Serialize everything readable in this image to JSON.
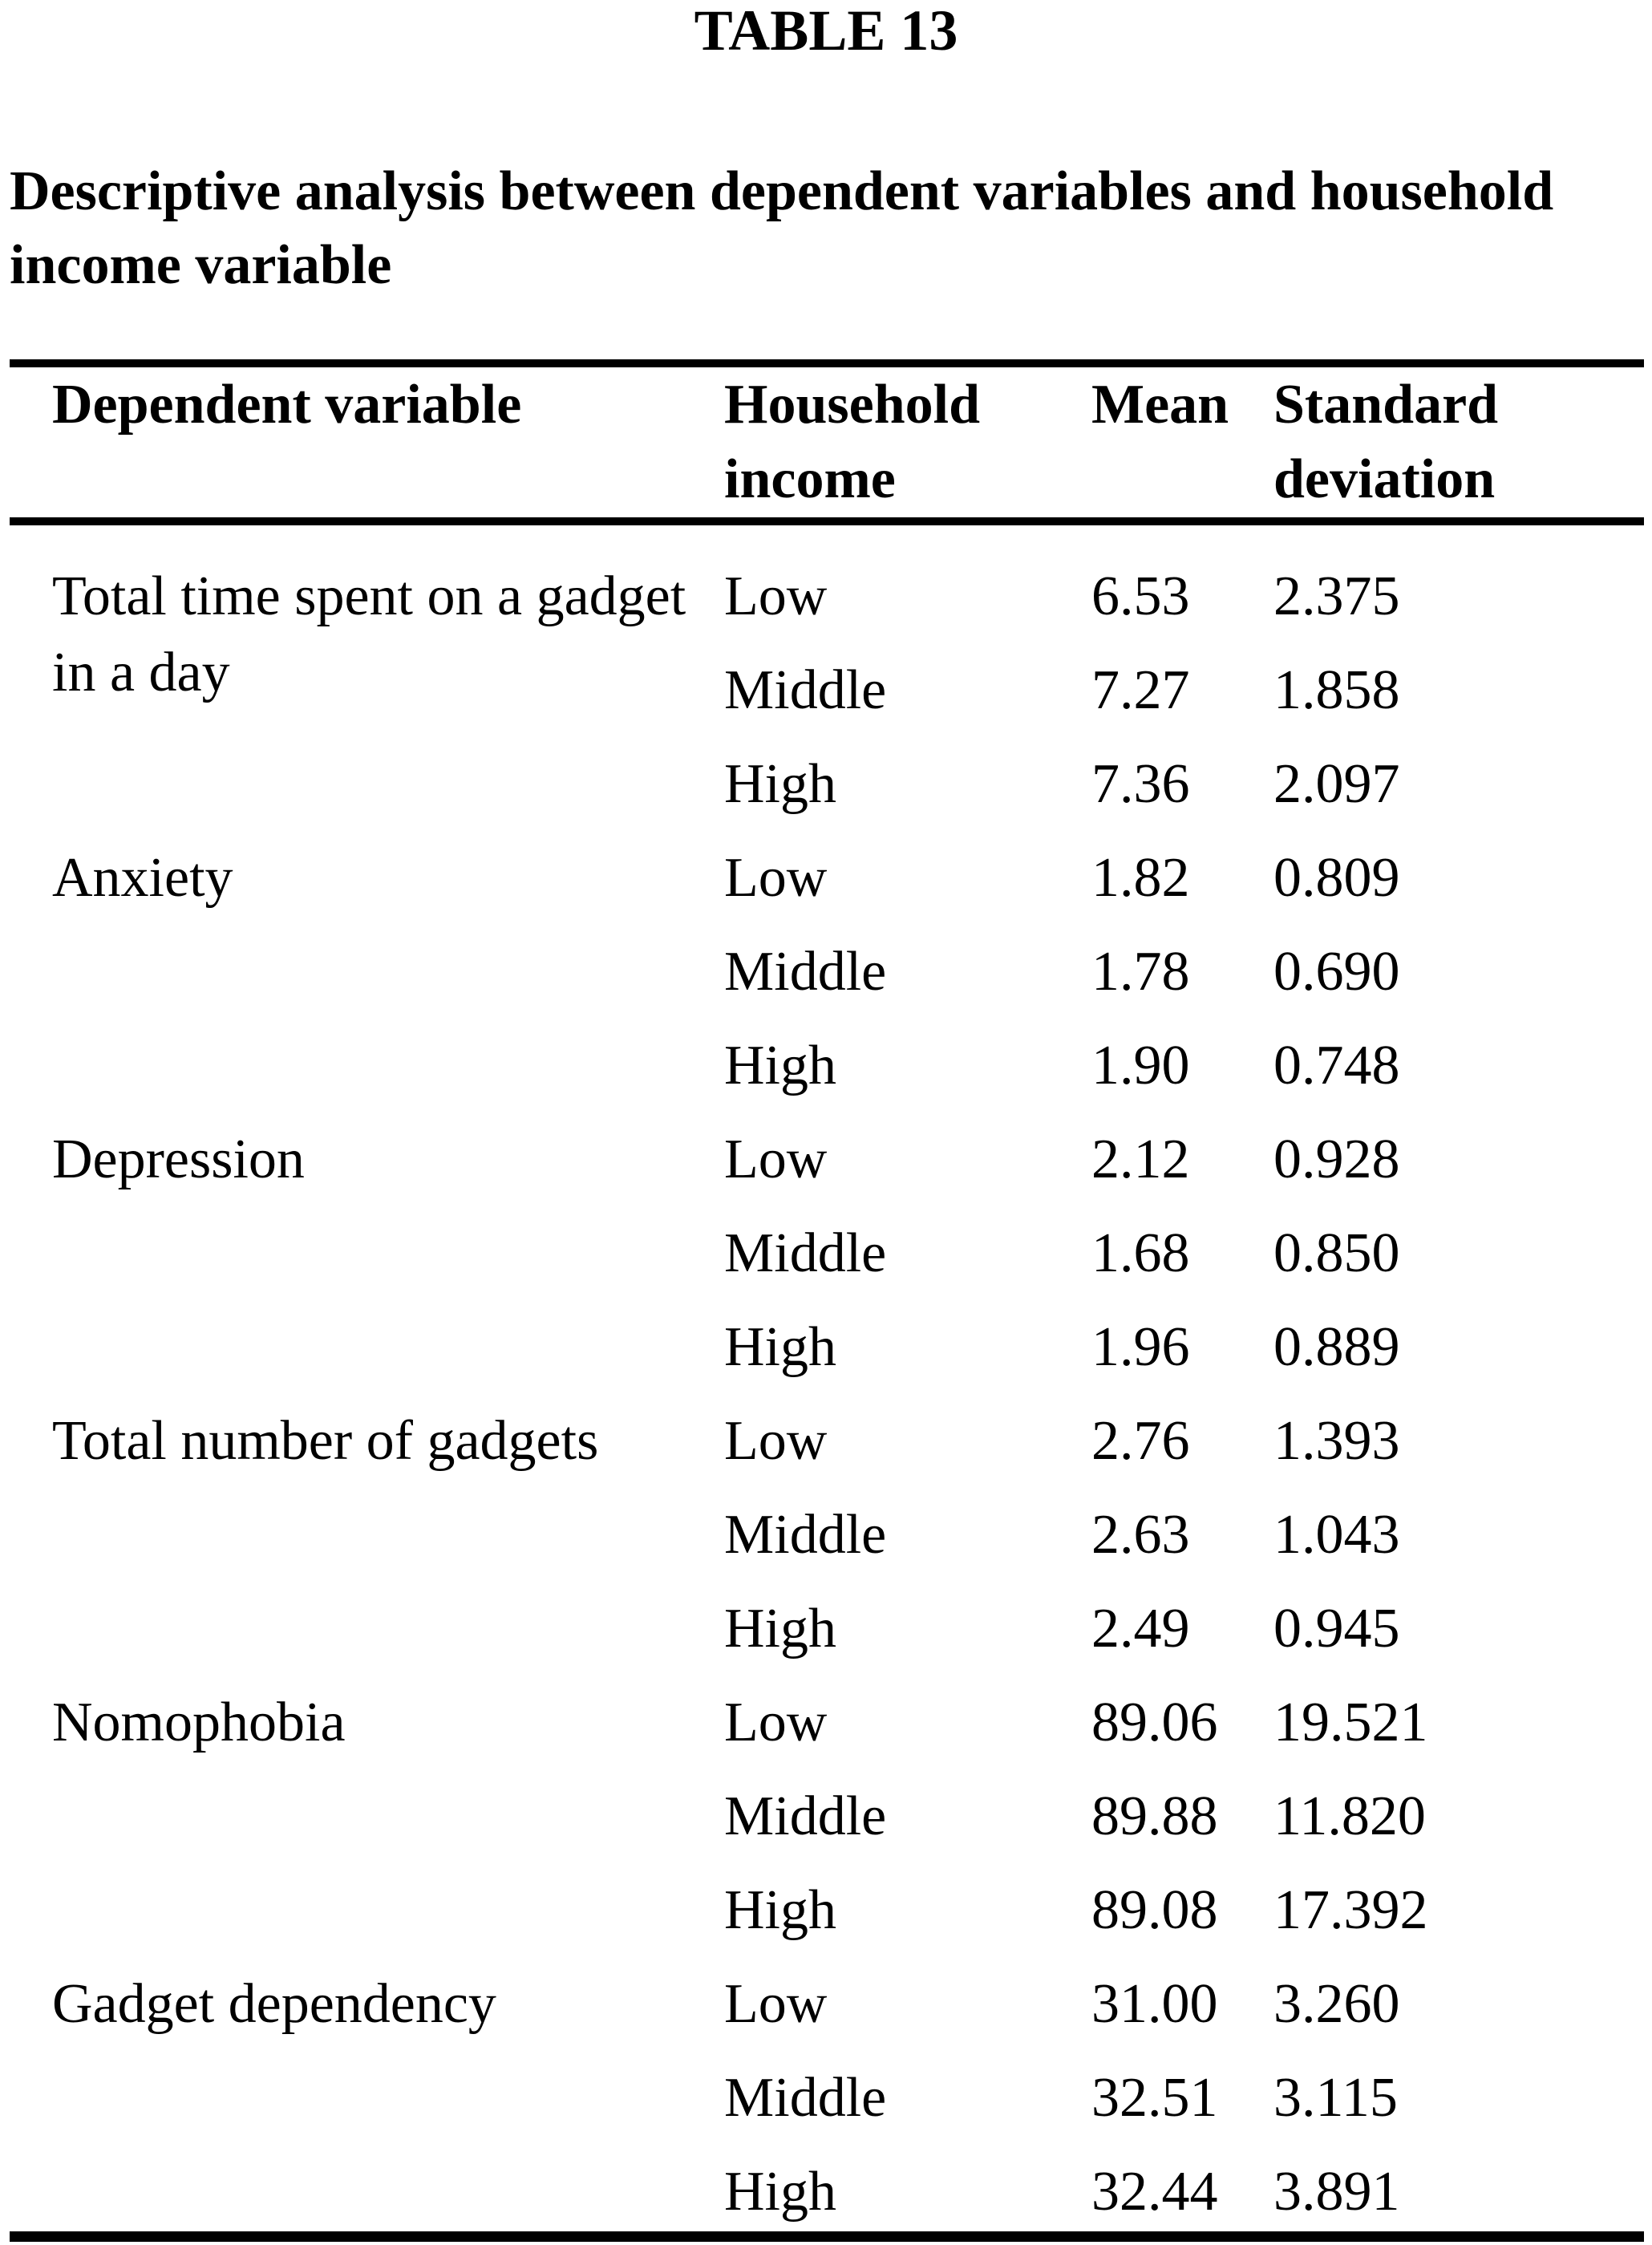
{
  "title": "TABLE 13",
  "caption": {
    "line1": "Descriptive analysis between dependent variables and household",
    "line2": "income variable"
  },
  "table": {
    "columns": [
      "Dependent variable",
      "Household income",
      "Mean",
      "Standard deviation"
    ],
    "groups": [
      {
        "variable": "Total time spent on a gadget in a day",
        "rows": [
          {
            "income": "Low",
            "mean": "6.53",
            "sd": "2.375"
          },
          {
            "income": "Middle",
            "mean": "7.27",
            "sd": "1.858"
          },
          {
            "income": "High",
            "mean": "7.36",
            "sd": "2.097"
          }
        ]
      },
      {
        "variable": "Anxiety",
        "rows": [
          {
            "income": "Low",
            "mean": "1.82",
            "sd": "0.809"
          },
          {
            "income": "Middle",
            "mean": "1.78",
            "sd": "0.690"
          },
          {
            "income": "High",
            "mean": "1.90",
            "sd": "0.748"
          }
        ]
      },
      {
        "variable": "Depression",
        "rows": [
          {
            "income": "Low",
            "mean": "2.12",
            "sd": "0.928"
          },
          {
            "income": "Middle",
            "mean": "1.68",
            "sd": "0.850"
          },
          {
            "income": "High",
            "mean": "1.96",
            "sd": "0.889"
          }
        ]
      },
      {
        "variable": "Total number of gadgets",
        "rows": [
          {
            "income": "Low",
            "mean": "2.76",
            "sd": "1.393"
          },
          {
            "income": "Middle",
            "mean": "2.63",
            "sd": "1.043"
          },
          {
            "income": "High",
            "mean": "2.49",
            "sd": "0.945"
          }
        ]
      },
      {
        "variable": "Nomophobia",
        "rows": [
          {
            "income": "Low",
            "mean": "89.06",
            "sd": "19.521"
          },
          {
            "income": "Middle",
            "mean": "89.88",
            "sd": "11.820"
          },
          {
            "income": "High",
            "mean": "89.08",
            "sd": "17.392"
          }
        ]
      },
      {
        "variable": "Gadget dependency",
        "rows": [
          {
            "income": "Low",
            "mean": "31.00",
            "sd": "3.260"
          },
          {
            "income": "Middle",
            "mean": "32.51",
            "sd": "3.115"
          },
          {
            "income": "High",
            "mean": "32.44",
            "sd": "3.891"
          }
        ]
      }
    ]
  }
}
